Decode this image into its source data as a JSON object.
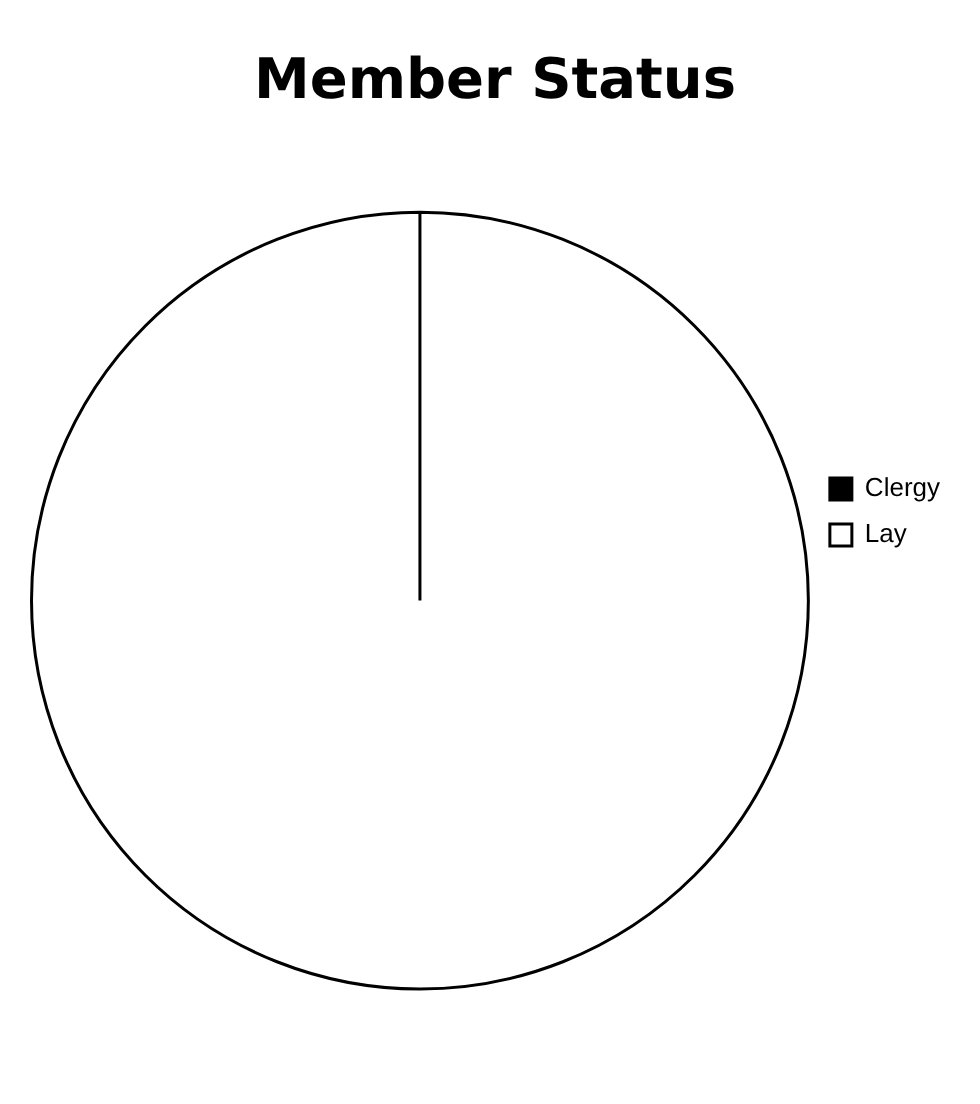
{
  "chart_data": {
    "type": "pie",
    "title": "Member Status",
    "categories": [
      "Clergy",
      "Lay"
    ],
    "values": [
      0,
      100
    ],
    "colors": [
      "#000000",
      "#ffffff"
    ],
    "legend": "right"
  }
}
